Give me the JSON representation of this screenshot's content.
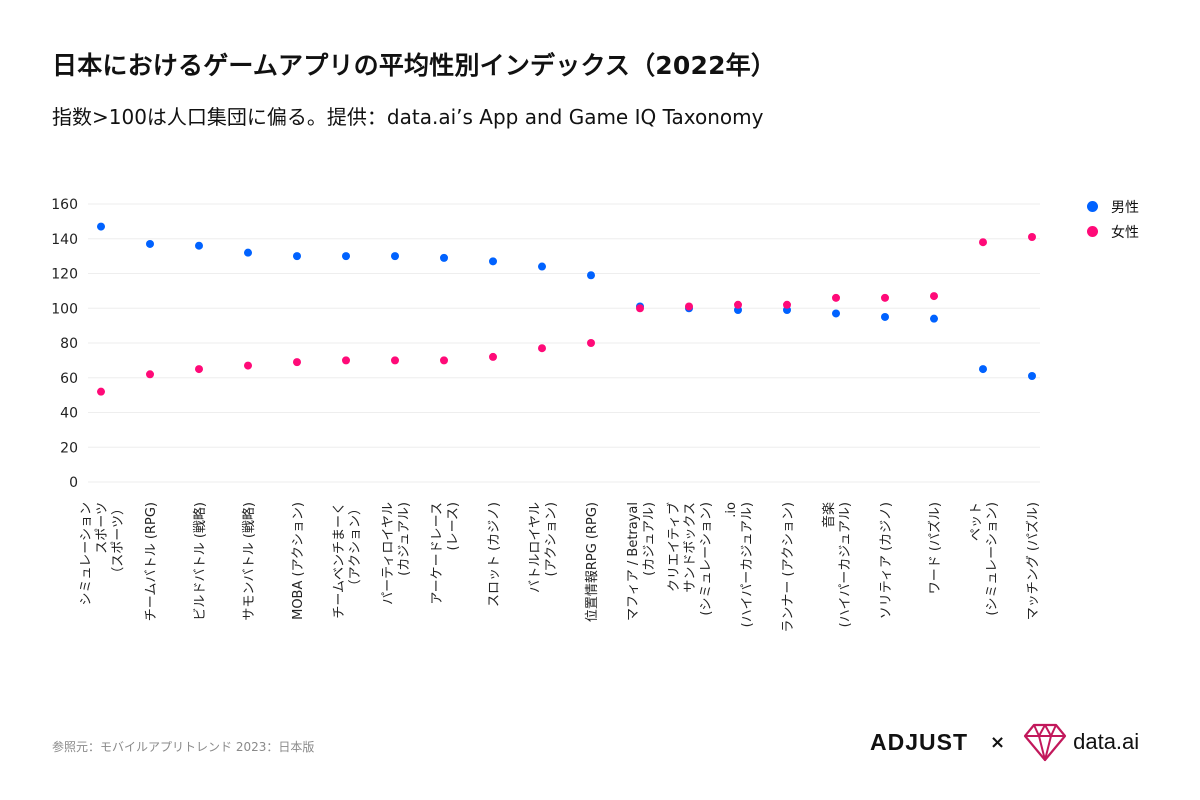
{
  "header": {
    "title": "日本におけるゲームアプリの平均性別インデックス（2022年）",
    "subtitle": "指数>100は人口集団に偏る。提供：data.ai’s App and Game IQ Taxonomy"
  },
  "footer": {
    "source": "参照元：モバイルアプリトレンド 2023：日本版",
    "logo_adjust": "ADJUST",
    "times_sign": "×",
    "logo_dataai": "data.ai"
  },
  "colors": {
    "male": "#0062ff",
    "female": "#ff0a78"
  },
  "chart_data": {
    "type": "scatter",
    "title": "",
    "xlabel": "",
    "ylabel": "",
    "ylim": [
      0,
      160
    ],
    "yticks": [
      0,
      20,
      40,
      60,
      80,
      100,
      120,
      140,
      160
    ],
    "grid": true,
    "legend_position": "top-right",
    "categories": [
      [
        "シミュレーション",
        "スポーツ",
        "（スポーツ）"
      ],
      [
        "チームバトル (RPG)"
      ],
      [
        "ビルドバトル (戦略)"
      ],
      [
        "サモンバトル (戦略)"
      ],
      [
        "MOBA (アクション)"
      ],
      [
        "チームベンチまーく",
        "（アクション）"
      ],
      [
        "パーティロイヤル",
        "(カジュアル)"
      ],
      [
        "アーケードレース",
        "(レース)"
      ],
      [
        "スロット (カジノ)"
      ],
      [
        "バトルロイヤル",
        "(アクション)"
      ],
      [
        "位置情報RPG (RPG)"
      ],
      [
        "マフィア / Betrayal",
        "(カジュアル)"
      ],
      [
        "クリエイティブ",
        "サンドボックス",
        "(シミュレーション)"
      ],
      [
        ".io",
        "(ハイパーカジュアル)"
      ],
      [
        "ランナー (アクション)"
      ],
      [
        "音楽",
        "(ハイパーカジュアル)"
      ],
      [
        "ソリティア (カジノ)"
      ],
      [
        "ワード (パズル)"
      ],
      [
        "ペット",
        "(シミュレーション)"
      ],
      [
        "マッチング (パズル)"
      ]
    ],
    "series": [
      {
        "name": "男性",
        "values": [
          147,
          137,
          136,
          132,
          130,
          130,
          130,
          129,
          127,
          124,
          119,
          101,
          100,
          99,
          99,
          97,
          95,
          94,
          65,
          61
        ]
      },
      {
        "name": "女性",
        "values": [
          52,
          62,
          65,
          67,
          69,
          70,
          70,
          70,
          72,
          77,
          80,
          100,
          101,
          102,
          102,
          106,
          106,
          107,
          138,
          141
        ]
      }
    ]
  }
}
